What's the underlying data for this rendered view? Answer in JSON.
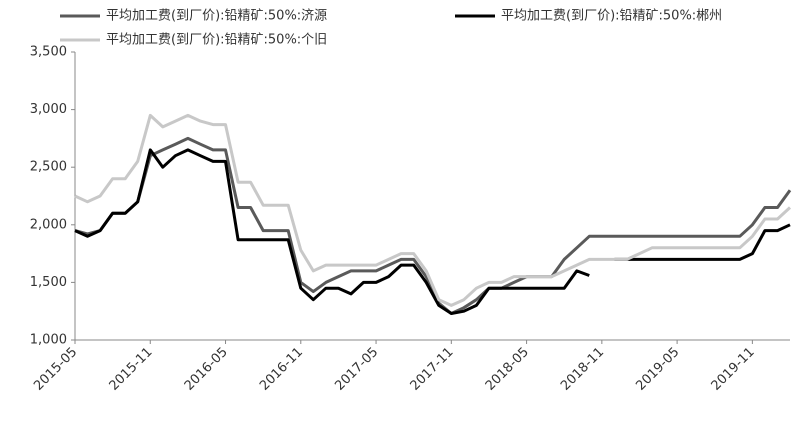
{
  "chart_data": {
    "type": "line",
    "legend": "top",
    "ylim": [
      1000,
      3500
    ],
    "yticks": [
      {
        "value": 1000,
        "label": "1,000"
      },
      {
        "value": 1500,
        "label": "1,500"
      },
      {
        "value": 2000,
        "label": "2,000"
      },
      {
        "value": 2500,
        "label": "2,500"
      },
      {
        "value": 3000,
        "label": "3,000"
      },
      {
        "value": 3500,
        "label": "3,500"
      }
    ],
    "categories": [
      "2015-05",
      null,
      null,
      null,
      null,
      null,
      "2015-11",
      null,
      null,
      null,
      null,
      null,
      "2016-05",
      null,
      null,
      null,
      null,
      null,
      "2016-11",
      null,
      null,
      null,
      null,
      null,
      "2017-05",
      null,
      null,
      null,
      null,
      null,
      "2017-11",
      null,
      null,
      null,
      null,
      null,
      "2018-05",
      null,
      null,
      null,
      null,
      null,
      "2018-11",
      null,
      null,
      null,
      null,
      null,
      "2019-05",
      null,
      null,
      null,
      null,
      null,
      "2019-11",
      null,
      null,
      null
    ],
    "series": [
      {
        "name": "平均加工费(到厂价):铅精矿:50%:济源",
        "color": "#5a5a5a",
        "values": [
          1950,
          1920,
          1950,
          2100,
          2100,
          2200,
          2600,
          2650,
          2700,
          2750,
          2700,
          2650,
          2650,
          2150,
          2150,
          1950,
          1950,
          1950,
          1500,
          1420,
          1500,
          1550,
          1600,
          1600,
          1600,
          1650,
          1700,
          1700,
          1550,
          1320,
          1230,
          1280,
          1350,
          1450,
          1450,
          1500,
          1550,
          1550,
          1550,
          1700,
          1800,
          1900,
          1900,
          1900,
          1900,
          1900,
          1900,
          1900,
          1900,
          1900,
          1900,
          1900,
          1900,
          1900,
          2000,
          2150,
          2150,
          2300
        ]
      },
      {
        "name": "平均加工费(到厂价):铅精矿:50%:郴州",
        "color": "#000000",
        "values": [
          1950,
          1900,
          1950,
          2100,
          2100,
          2200,
          2650,
          2500,
          2600,
          2650,
          2600,
          2550,
          2550,
          1870,
          1870,
          1870,
          1870,
          1870,
          1450,
          1350,
          1450,
          1450,
          1400,
          1500,
          1500,
          1550,
          1650,
          1650,
          1500,
          1300,
          1230,
          1250,
          1300,
          1450,
          1450,
          1450,
          1450,
          1450,
          1450,
          1450,
          1600,
          1560,
          null,
          1700,
          1700,
          1700,
          1700,
          1700,
          1700,
          1700,
          1700,
          1700,
          1700,
          1700,
          1750,
          1950,
          1950,
          2000
        ]
      },
      {
        "name": "平均加工费(到厂价):铅精矿:50%:个旧",
        "color": "#c8c8c8",
        "values": [
          2250,
          2200,
          2250,
          2400,
          2400,
          2550,
          2950,
          2850,
          2900,
          2950,
          2900,
          2870,
          2870,
          2370,
          2370,
          2170,
          2170,
          2170,
          1780,
          1600,
          1650,
          1650,
          1650,
          1650,
          1650,
          1700,
          1750,
          1750,
          1600,
          1350,
          1300,
          1350,
          1450,
          1500,
          1500,
          1550,
          1550,
          1550,
          1550,
          1600,
          1650,
          1700,
          1700,
          1700,
          1700,
          1750,
          1800,
          1800,
          1800,
          1800,
          1800,
          1800,
          1800,
          1800,
          1900,
          2050,
          2050,
          2150
        ]
      }
    ]
  }
}
